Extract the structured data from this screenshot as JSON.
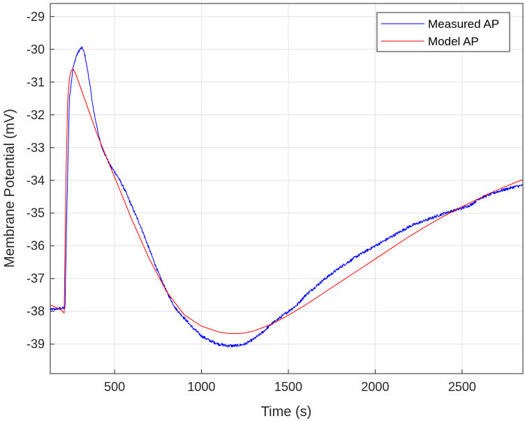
{
  "chart_data": {
    "type": "line",
    "title": "",
    "xlabel": "Time (s)",
    "ylabel": "Membrane Potential (mV)",
    "xlim": [
      130,
      2850
    ],
    "ylim": [
      -39.9,
      -28.6
    ],
    "xticks": [
      500,
      1000,
      1500,
      2000,
      2500
    ],
    "xtick_labels": [
      "500",
      "1000",
      "1500",
      "2000",
      "2500"
    ],
    "yticks": [
      -39,
      -38,
      -37,
      -36,
      -35,
      -34,
      -33,
      -32,
      -31,
      -30,
      -29
    ],
    "ytick_labels": [
      "-39",
      "-38",
      "-37",
      "-36",
      "-35",
      "-34",
      "-33",
      "-32",
      "-31",
      "-30",
      "-29"
    ],
    "grid": true,
    "legend_position": "top-right",
    "series": [
      {
        "name": "Measured AP",
        "color": "#0000ff",
        "noisy": true,
        "x": [
          130,
          200,
          215,
          225,
          240,
          260,
          280,
          300,
          315,
          330,
          350,
          380,
          420,
          470,
          520,
          560,
          600,
          650,
          700,
          750,
          800,
          850,
          900,
          950,
          1000,
          1050,
          1100,
          1150,
          1200,
          1250,
          1300,
          1350,
          1400,
          1450,
          1500,
          1550,
          1600,
          1700,
          1800,
          1900,
          2000,
          2100,
          2200,
          2300,
          2400,
          2500,
          2550,
          2600,
          2700,
          2800,
          2850
        ],
        "y": [
          -37.95,
          -37.9,
          -37.9,
          -35.0,
          -31.5,
          -30.6,
          -30.2,
          -30.0,
          -29.95,
          -30.2,
          -30.8,
          -31.9,
          -32.9,
          -33.5,
          -33.9,
          -34.3,
          -34.8,
          -35.4,
          -36.1,
          -36.8,
          -37.4,
          -37.9,
          -38.2,
          -38.5,
          -38.75,
          -38.9,
          -39.0,
          -39.05,
          -39.05,
          -39.0,
          -38.85,
          -38.65,
          -38.4,
          -38.2,
          -38.0,
          -37.8,
          -37.5,
          -37.05,
          -36.65,
          -36.3,
          -36.0,
          -35.7,
          -35.4,
          -35.2,
          -35.0,
          -34.85,
          -34.75,
          -34.55,
          -34.35,
          -34.2,
          -34.15
        ]
      },
      {
        "name": "Model AP",
        "color": "#ff0000",
        "noisy": false,
        "x": [
          130,
          190,
          210,
          220,
          230,
          240,
          250,
          262,
          280,
          320,
          400,
          500,
          600,
          700,
          800,
          900,
          1000,
          1100,
          1150,
          1200,
          1250,
          1300,
          1400,
          1500,
          1600,
          1700,
          1800,
          1900,
          2000,
          2100,
          2200,
          2300,
          2400,
          2500,
          2600,
          2700,
          2800,
          2850
        ],
        "y": [
          -37.8,
          -37.95,
          -38.05,
          -34.0,
          -31.6,
          -30.9,
          -30.65,
          -30.6,
          -30.8,
          -31.4,
          -32.6,
          -33.9,
          -35.2,
          -36.4,
          -37.4,
          -38.1,
          -38.45,
          -38.63,
          -38.67,
          -38.68,
          -38.66,
          -38.6,
          -38.4,
          -38.12,
          -37.8,
          -37.45,
          -37.1,
          -36.75,
          -36.4,
          -36.05,
          -35.7,
          -35.38,
          -35.08,
          -34.8,
          -34.55,
          -34.3,
          -34.08,
          -33.98
        ]
      }
    ]
  }
}
